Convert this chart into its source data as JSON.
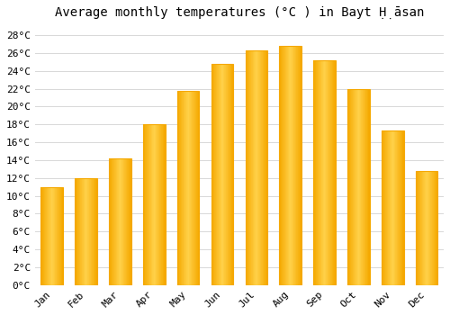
{
  "title": "Average monthly temperatures (°C ) in Bayt Ḥ̣āsan",
  "months": [
    "Jan",
    "Feb",
    "Mar",
    "Apr",
    "May",
    "Jun",
    "Jul",
    "Aug",
    "Sep",
    "Oct",
    "Nov",
    "Dec"
  ],
  "values": [
    11.0,
    12.0,
    14.2,
    18.0,
    21.7,
    24.8,
    26.3,
    26.8,
    25.2,
    22.0,
    17.3,
    12.8
  ],
  "bar_color_center": "#FFD04A",
  "bar_color_edge": "#F5A800",
  "background_color": "#ffffff",
  "grid_color": "#d8d8d8",
  "ylim": [
    0,
    29
  ],
  "ytick_step": 2,
  "title_fontsize": 10,
  "tick_fontsize": 8
}
